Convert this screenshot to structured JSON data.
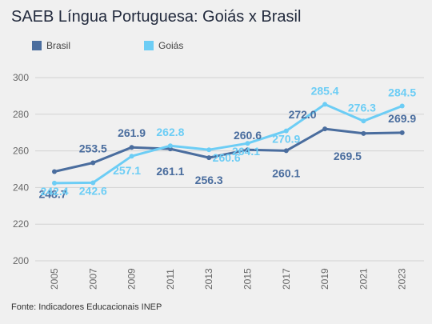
{
  "chart_data": {
    "type": "line",
    "title": "SAEB Língua Portuguesa: Goiás x Brasil",
    "source": "Fonte: Indicadores Educacionais INEP",
    "x": [
      "2005",
      "2007",
      "2009",
      "2011",
      "2013",
      "2015",
      "2017",
      "2019",
      "2021",
      "2023"
    ],
    "ylim": [
      200,
      300
    ],
    "yticks": [
      200,
      220,
      240,
      260,
      280,
      300
    ],
    "grid": true,
    "legend_position": "top-left",
    "series": [
      {
        "name": "Brasil",
        "color": "#4a6d9e",
        "values": [
          248.7,
          253.5,
          261.9,
          261.1,
          256.3,
          260.6,
          260.1,
          272.0,
          269.5,
          269.9
        ]
      },
      {
        "name": "Goiás",
        "color": "#6ccdf5",
        "values": [
          242.4,
          242.6,
          257.1,
          262.8,
          260.6,
          264.1,
          270.9,
          285.4,
          276.3,
          284.5
        ]
      }
    ]
  }
}
